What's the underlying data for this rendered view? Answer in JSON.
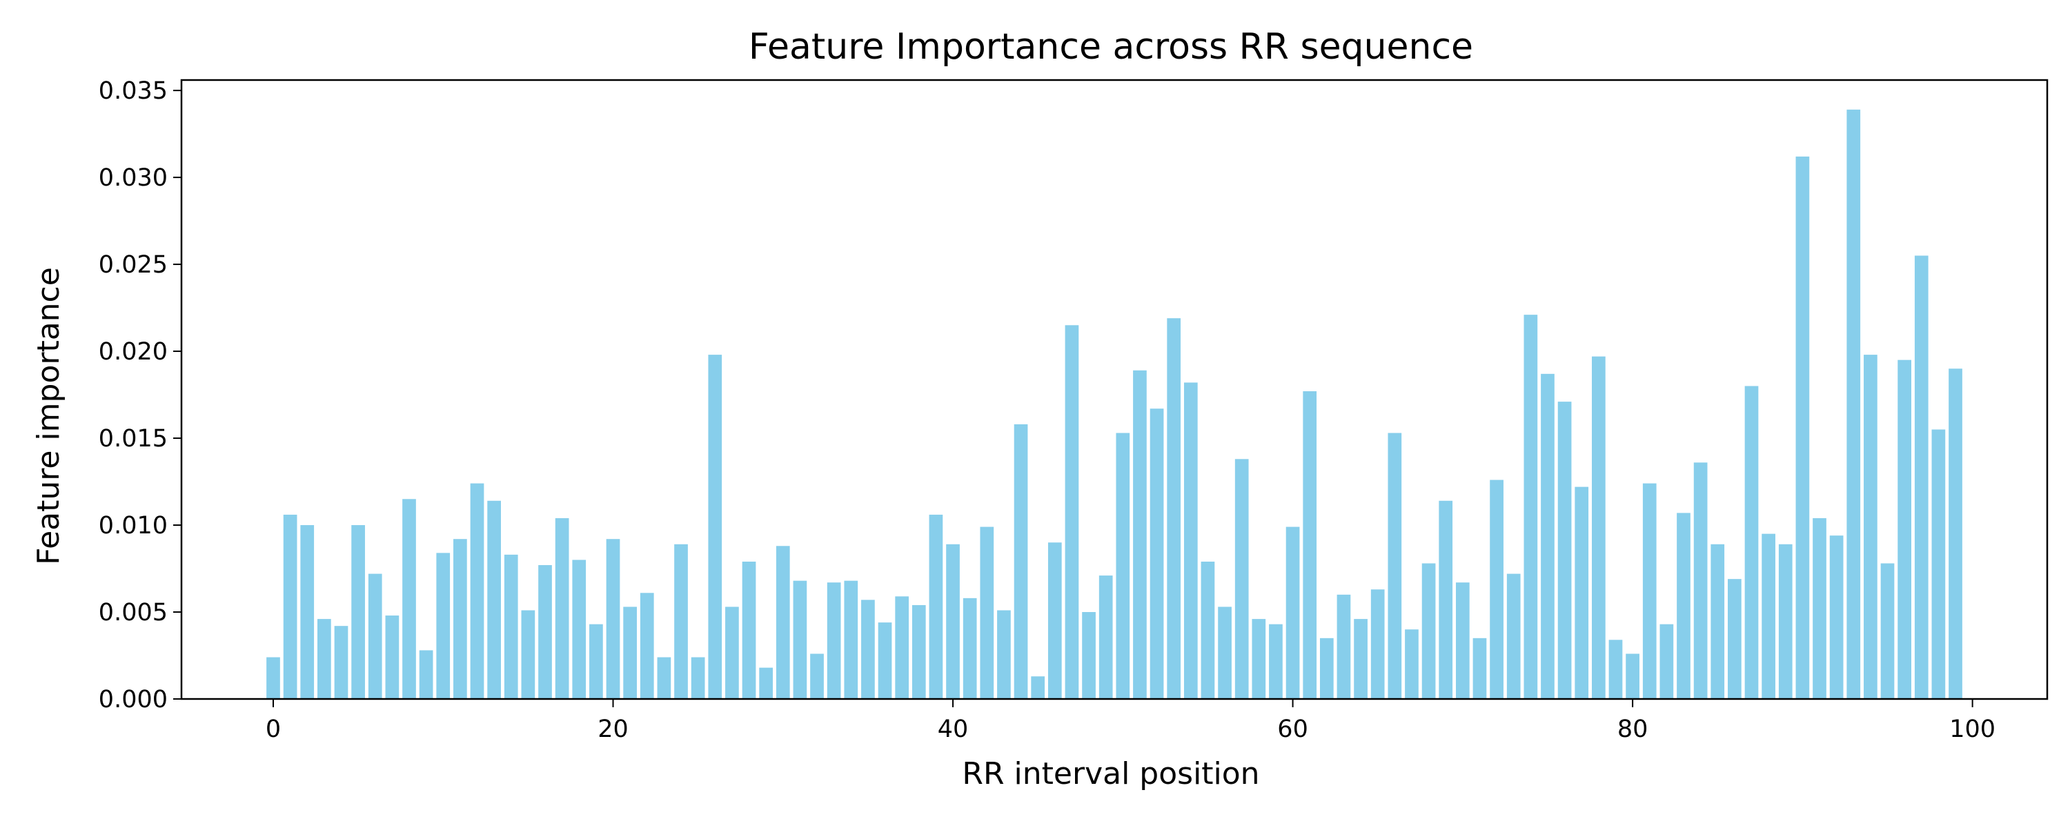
{
  "chart_data": {
    "type": "bar",
    "title": "Feature Importance across RR sequence",
    "xlabel": "RR interval position",
    "ylabel": "Feature importance",
    "x": [
      0,
      1,
      2,
      3,
      4,
      5,
      6,
      7,
      8,
      9,
      10,
      11,
      12,
      13,
      14,
      15,
      16,
      17,
      18,
      19,
      20,
      21,
      22,
      23,
      24,
      25,
      26,
      27,
      28,
      29,
      30,
      31,
      32,
      33,
      34,
      35,
      36,
      37,
      38,
      39,
      40,
      41,
      42,
      43,
      44,
      45,
      46,
      47,
      48,
      49,
      50,
      51,
      52,
      53,
      54,
      55,
      56,
      57,
      58,
      59,
      60,
      61,
      62,
      63,
      64,
      65,
      66,
      67,
      68,
      69,
      70,
      71,
      72,
      73,
      74,
      75,
      76,
      77,
      78,
      79,
      80,
      81,
      82,
      83,
      84,
      85,
      86,
      87,
      88,
      89,
      90,
      91,
      92,
      93,
      94,
      95,
      96,
      97,
      98,
      99
    ],
    "values": [
      0.0024,
      0.0106,
      0.01,
      0.0046,
      0.0042,
      0.01,
      0.0072,
      0.0048,
      0.0115,
      0.0028,
      0.0084,
      0.0092,
      0.0124,
      0.0114,
      0.0083,
      0.0051,
      0.0077,
      0.0104,
      0.008,
      0.0043,
      0.0092,
      0.0053,
      0.0061,
      0.0024,
      0.0089,
      0.0024,
      0.0198,
      0.0053,
      0.0079,
      0.0018,
      0.0088,
      0.0068,
      0.0026,
      0.0067,
      0.0068,
      0.0057,
      0.0044,
      0.0059,
      0.0054,
      0.0106,
      0.0089,
      0.0058,
      0.0099,
      0.0051,
      0.0158,
      0.0013,
      0.009,
      0.0215,
      0.005,
      0.0071,
      0.0153,
      0.0189,
      0.0167,
      0.0219,
      0.0182,
      0.0079,
      0.0053,
      0.0138,
      0.0046,
      0.0043,
      0.0099,
      0.0177,
      0.0035,
      0.006,
      0.0046,
      0.0063,
      0.0153,
      0.004,
      0.0078,
      0.0114,
      0.0067,
      0.0035,
      0.0126,
      0.0072,
      0.0221,
      0.0187,
      0.0171,
      0.0122,
      0.0197,
      0.0034,
      0.0026,
      0.0124,
      0.0043,
      0.0107,
      0.0136,
      0.0089,
      0.0069,
      0.018,
      0.0095,
      0.0089,
      0.0312,
      0.0104,
      0.0094,
      0.0339,
      0.0198,
      0.0078,
      0.0195,
      0.0255,
      0.0155,
      0.019
    ],
    "xticks": [
      0,
      20,
      40,
      60,
      80,
      100
    ],
    "yticks": [
      "0.000",
      "0.005",
      "0.010",
      "0.015",
      "0.020",
      "0.025",
      "0.030",
      "0.035"
    ],
    "xlim": [
      -5.4,
      104.4
    ],
    "ylim": [
      0,
      0.0356
    ],
    "bar_color": "#87CEEB",
    "grid": false,
    "legend": "none"
  }
}
